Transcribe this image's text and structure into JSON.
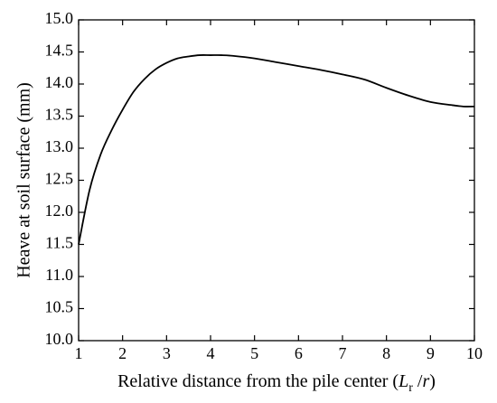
{
  "chart_data": {
    "type": "line",
    "title": "",
    "xlabel": "Relative distance from the pile center (",
    "xlabel_var_L": "L",
    "xlabel_sub_r": "r",
    "xlabel_sep": " /",
    "xlabel_var_r": "r",
    "xlabel_close": ")",
    "ylabel": "Heave at soil surface (mm)",
    "xlim": [
      1,
      10
    ],
    "ylim": [
      10.0,
      15.0
    ],
    "xticks": [
      "1",
      "2",
      "3",
      "4",
      "5",
      "6",
      "7",
      "8",
      "9",
      "10"
    ],
    "yticks": [
      "10.0",
      "10.5",
      "11.0",
      "11.5",
      "12.0",
      "12.5",
      "13.0",
      "13.5",
      "14.0",
      "14.5",
      "15.0"
    ],
    "grid": false,
    "series": [
      {
        "x": [
          1.0,
          1.25,
          1.5,
          1.75,
          2.0,
          2.25,
          2.5,
          2.75,
          3.0,
          3.25,
          3.5,
          3.75,
          4.0,
          4.25,
          4.5,
          5.0,
          5.5,
          6.0,
          6.5,
          7.0,
          7.5,
          8.0,
          8.5,
          9.0,
          9.5,
          9.75,
          10.0
        ],
        "y": [
          11.5,
          12.35,
          12.9,
          13.28,
          13.6,
          13.88,
          14.08,
          14.23,
          14.33,
          14.4,
          14.43,
          14.45,
          14.45,
          14.45,
          14.44,
          14.4,
          14.34,
          14.28,
          14.22,
          14.15,
          14.07,
          13.94,
          13.82,
          13.72,
          13.67,
          13.65,
          13.65
        ],
        "color": "#000000"
      }
    ]
  }
}
